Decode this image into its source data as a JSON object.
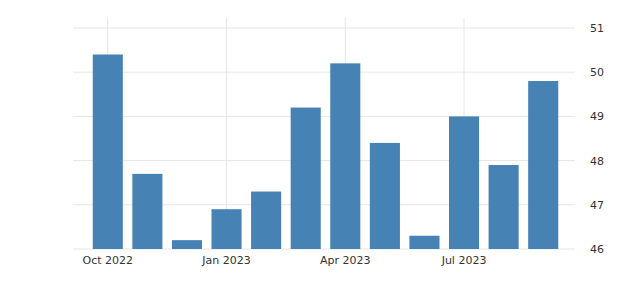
{
  "chart_data": {
    "type": "bar",
    "categories": [
      "Oct 2022",
      null,
      null,
      "Jan 2023",
      null,
      null,
      "Apr 2023",
      null,
      null,
      "Jul 2023",
      null,
      null
    ],
    "values": [
      50.4,
      47.7,
      46.2,
      46.9,
      47.3,
      49.2,
      50.2,
      48.4,
      46.3,
      49.0,
      47.9,
      49.8
    ],
    "color": "#4682b4",
    "ylim": [
      46,
      51
    ],
    "yticks": [
      46,
      47,
      48,
      49,
      50,
      51
    ],
    "grid": true
  }
}
